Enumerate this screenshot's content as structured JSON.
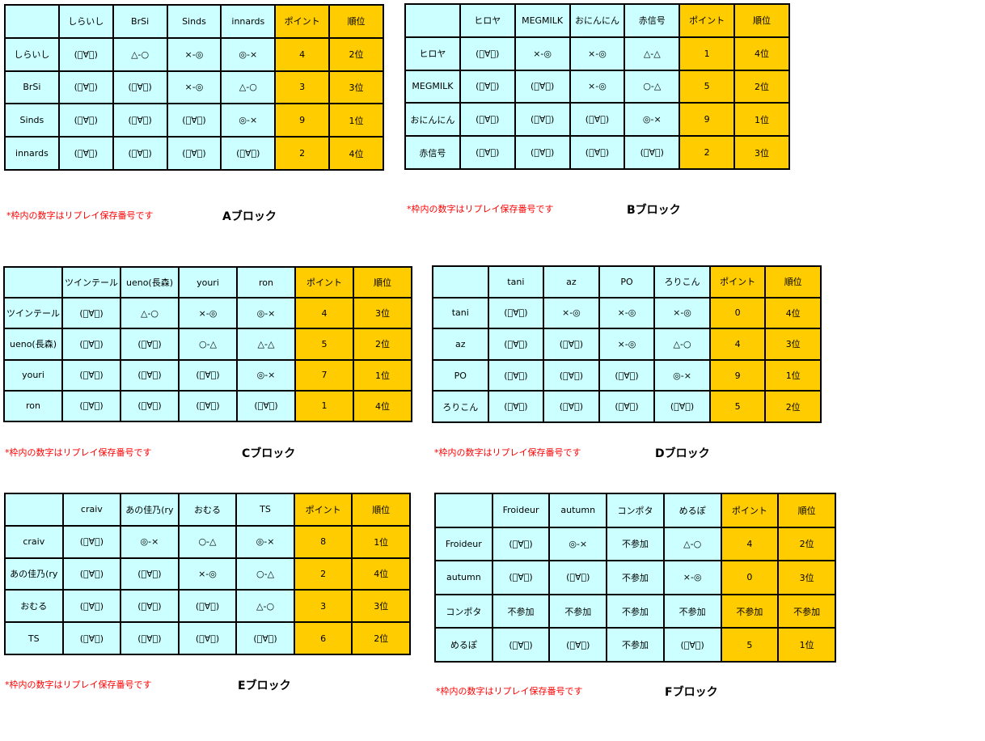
{
  "colors": {
    "cell_bg": "#ccffff",
    "score_bg": "#ffcc00",
    "note_text": "#ff0000",
    "border": "#000000"
  },
  "blocks": [
    {
      "label": "Aブロック",
      "note": "*枠内の数字はリプレイ保存番号です",
      "headers": [
        "しらいし",
        "BrSi",
        "Sinds",
        "innards",
        "ポイント",
        "順位"
      ],
      "rows": [
        {
          "name": "しらいし",
          "results": [
            "(゚∀゚)",
            "△-○",
            "×-◎",
            "◎-×"
          ],
          "points": 4,
          "rank": "2位"
        },
        {
          "name": "BrSi",
          "results": [
            "(゚∀゚)",
            "(゚∀゚)",
            "×-◎",
            "△-○"
          ],
          "points": 3,
          "rank": "3位"
        },
        {
          "name": "Sinds",
          "results": [
            "(゚∀゚)",
            "(゚∀゚)",
            "(゚∀゚)",
            "◎-×"
          ],
          "points": 9,
          "rank": "1位"
        },
        {
          "name": "innards",
          "results": [
            "(゚∀゚)",
            "(゚∀゚)",
            "(゚∀゚)",
            "(゚∀゚)"
          ],
          "points": 2,
          "rank": "4位"
        }
      ]
    },
    {
      "label": "Bブロック",
      "note": "*枠内の数字はリプレイ保存番号です",
      "headers": [
        "ヒロヤ",
        "MEGMILK",
        "おにんにん",
        "赤信号",
        "ポイント",
        "順位"
      ],
      "rows": [
        {
          "name": "ヒロヤ",
          "results": [
            "(゚∀゚)",
            "×-◎",
            "×-◎",
            "△-△"
          ],
          "points": 1,
          "rank": "4位"
        },
        {
          "name": "MEGMILK",
          "results": [
            "(゚∀゚)",
            "(゚∀゚)",
            "×-◎",
            "○-△"
          ],
          "points": 5,
          "rank": "2位"
        },
        {
          "name": "おにんにん",
          "results": [
            "(゚∀゚)",
            "(゚∀゚)",
            "(゚∀゚)",
            "◎-×"
          ],
          "points": 9,
          "rank": "1位"
        },
        {
          "name": "赤信号",
          "results": [
            "(゚∀゚)",
            "(゚∀゚)",
            "(゚∀゚)",
            "(゚∀゚)"
          ],
          "points": 2,
          "rank": "3位"
        }
      ]
    },
    {
      "label": "Cブロック",
      "note": "*枠内の数字はリプレイ保存番号です",
      "headers": [
        "ツインテール",
        "ueno(長森)",
        "youri",
        "ron",
        "ポイント",
        "順位"
      ],
      "rows": [
        {
          "name": "ツインテール",
          "results": [
            "(゚∀゚)",
            "△-○",
            "×-◎",
            "◎-×"
          ],
          "points": 4,
          "rank": "3位"
        },
        {
          "name": "ueno(長森)",
          "results": [
            "(゚∀゚)",
            "(゚∀゚)",
            "○-△",
            "△-△"
          ],
          "points": 5,
          "rank": "2位"
        },
        {
          "name": "youri",
          "results": [
            "(゚∀゚)",
            "(゚∀゚)",
            "(゚∀゚)",
            "◎-×"
          ],
          "points": 7,
          "rank": "1位"
        },
        {
          "name": "ron",
          "results": [
            "(゚∀゚)",
            "(゚∀゚)",
            "(゚∀゚)",
            "(゚∀゚)"
          ],
          "points": 1,
          "rank": "4位"
        }
      ]
    },
    {
      "label": "Dブロック",
      "note": "*枠内の数字はリプレイ保存番号です",
      "headers": [
        "tani",
        "az",
        "PO",
        "ろりこん",
        "ポイント",
        "順位"
      ],
      "rows": [
        {
          "name": "tani",
          "results": [
            "(゚∀゚)",
            "×-◎",
            "×-◎",
            "×-◎"
          ],
          "points": 0,
          "rank": "4位"
        },
        {
          "name": "az",
          "results": [
            "(゚∀゚)",
            "(゚∀゚)",
            "×-◎",
            "△-○"
          ],
          "points": 4,
          "rank": "3位"
        },
        {
          "name": "PO",
          "results": [
            "(゚∀゚)",
            "(゚∀゚)",
            "(゚∀゚)",
            "◎-×"
          ],
          "points": 9,
          "rank": "1位"
        },
        {
          "name": "ろりこん",
          "results": [
            "(゚∀゚)",
            "(゚∀゚)",
            "(゚∀゚)",
            "(゚∀゚)"
          ],
          "points": 5,
          "rank": "2位"
        }
      ]
    },
    {
      "label": "Eブロック",
      "note": "*枠内の数字はリプレイ保存番号です",
      "headers": [
        "craiv",
        "あの佳乃(ry",
        "おむる",
        "TS",
        "ポイント",
        "順位"
      ],
      "rows": [
        {
          "name": "craiv",
          "results": [
            "(゚∀゚)",
            "◎-×",
            "○-△",
            "◎-×"
          ],
          "points": 8,
          "rank": "1位"
        },
        {
          "name": "あの佳乃(ry",
          "results": [
            "(゚∀゚)",
            "(゚∀゚)",
            "×-◎",
            "○-△"
          ],
          "points": 2,
          "rank": "4位"
        },
        {
          "name": "おむる",
          "results": [
            "(゚∀゚)",
            "(゚∀゚)",
            "(゚∀゚)",
            "△-○"
          ],
          "points": 3,
          "rank": "3位"
        },
        {
          "name": "TS",
          "results": [
            "(゚∀゚)",
            "(゚∀゚)",
            "(゚∀゚)",
            "(゚∀゚)"
          ],
          "points": 6,
          "rank": "2位"
        }
      ]
    },
    {
      "label": "Fブロック",
      "note": "*枠内の数字はリプレイ保存番号です",
      "headers": [
        "Froideur",
        "autumn",
        "コンポタ",
        "めるぽ",
        "ポイント",
        "順位"
      ],
      "rows": [
        {
          "name": "Froideur",
          "results": [
            "(゚∀゚)",
            "◎-×",
            "不参加",
            "△-○"
          ],
          "points": 4,
          "rank": "2位"
        },
        {
          "name": "autumn",
          "results": [
            "(゚∀゚)",
            "(゚∀゚)",
            "不参加",
            "×-◎"
          ],
          "points": 0,
          "rank": "3位"
        },
        {
          "name": "コンポタ",
          "results": [
            "不参加",
            "不参加",
            "不参加",
            "不参加"
          ],
          "points": "不参加",
          "rank": "不参加"
        },
        {
          "name": "めるぽ",
          "results": [
            "(゚∀゚)",
            "(゚∀゚)",
            "不参加",
            "(゚∀゚)"
          ],
          "points": 5,
          "rank": "1位"
        }
      ]
    }
  ]
}
